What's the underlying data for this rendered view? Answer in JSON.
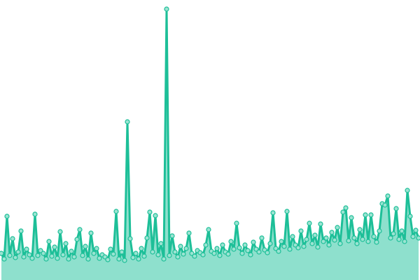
{
  "chart_data": {
    "type": "area",
    "title": "",
    "xlabel": "",
    "ylabel": "",
    "ylim": [
      0,
      400
    ],
    "grid": false,
    "legend": "none",
    "colors": {
      "line": "#1dbf98",
      "fill": "#8ee0cd",
      "marker_fill": "#9ae4d2",
      "marker_stroke": "#1dbf98"
    },
    "values": [
      38,
      30,
      91,
      35,
      59,
      32,
      40,
      70,
      33,
      44,
      36,
      31,
      94,
      35,
      42,
      38,
      30,
      55,
      34,
      47,
      31,
      69,
      36,
      52,
      30,
      41,
      33,
      58,
      72,
      35,
      48,
      30,
      67,
      38,
      45,
      31,
      36,
      33,
      29,
      44,
      37,
      98,
      30,
      40,
      28,
      226,
      59,
      32,
      38,
      30,
      45,
      34,
      60,
      97,
      40,
      92,
      36,
      52,
      30,
      387,
      35,
      63,
      40,
      33,
      48,
      37,
      45,
      67,
      38,
      34,
      42,
      39,
      36,
      50,
      72,
      41,
      38,
      45,
      35,
      50,
      40,
      37,
      55,
      44,
      81,
      46,
      38,
      50,
      42,
      36,
      54,
      44,
      40,
      60,
      43,
      39,
      52,
      96,
      45,
      41,
      55,
      48,
      98,
      44,
      62,
      50,
      46,
      70,
      48,
      58,
      81,
      52,
      64,
      47,
      80,
      55,
      60,
      50,
      68,
      57,
      75,
      52,
      97,
      103,
      56,
      89,
      60,
      52,
      72,
      58,
      93,
      55,
      93,
      62,
      54,
      70,
      109,
      107,
      120,
      60,
      66,
      102,
      58,
      70,
      55,
      128,
      91,
      62,
      71,
      60
    ]
  }
}
